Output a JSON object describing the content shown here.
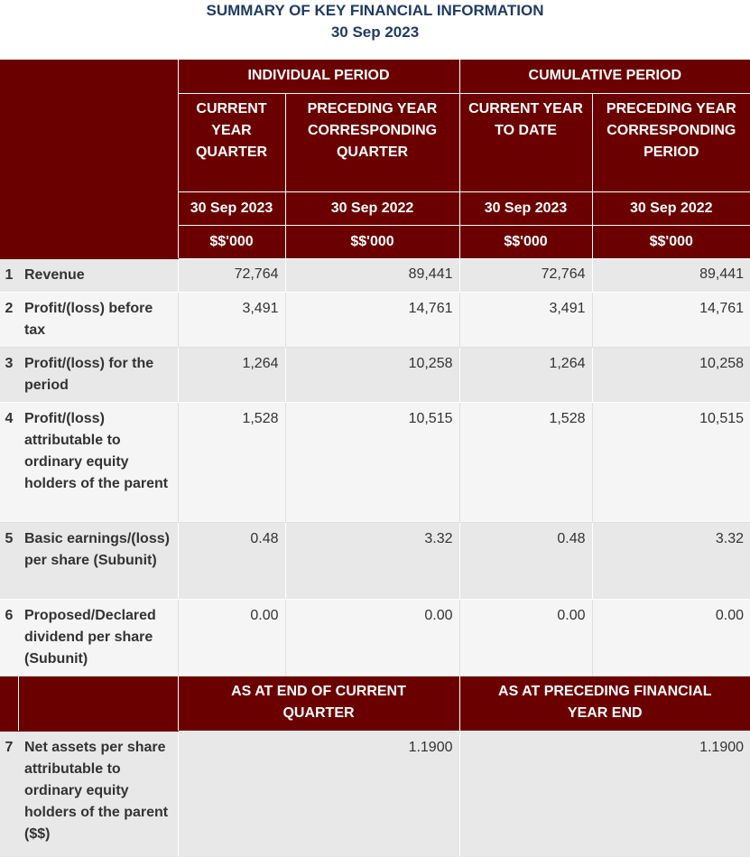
{
  "title": "SUMMARY OF KEY FINANCIAL INFORMATION",
  "subtitle": "30 Sep 2023",
  "headers": {
    "individual_period": "INDIVIDUAL PERIOD",
    "cumulative_period": "CUMULATIVE PERIOD",
    "col1": "CURRENT YEAR QUARTER",
    "col2": "PRECEDING YEAR CORRESPONDING QUARTER",
    "col3": "CURRENT YEAR TO DATE",
    "col4": "PRECEDING YEAR CORRESPONDING PERIOD",
    "date1": "30 Sep 2023",
    "date2": "30 Sep 2022",
    "date3": "30 Sep 2023",
    "date4": "30 Sep 2022",
    "unit1": "$$'000",
    "unit2": "$$'000",
    "unit3": "$$'000",
    "unit4": "$$'000",
    "as_at_current": "AS AT END OF CURRENT QUARTER",
    "as_at_preceding": "AS AT PRECEDING FINANCIAL YEAR END"
  },
  "rows": [
    {
      "num": "1",
      "label": "Revenue",
      "v1": "72,764",
      "v2": "89,441",
      "v3": "72,764",
      "v4": "89,441"
    },
    {
      "num": "2",
      "label": "Profit/(loss) before tax",
      "v1": "3,491",
      "v2": "14,761",
      "v3": "3,491",
      "v4": "14,761"
    },
    {
      "num": "3",
      "label": "Profit/(loss) for the period",
      "v1": "1,264",
      "v2": "10,258",
      "v3": "1,264",
      "v4": "10,258"
    },
    {
      "num": "4",
      "label": "Profit/(loss) attributable to ordinary equity holders of the parent",
      "v1": "1,528",
      "v2": "10,515",
      "v3": "1,528",
      "v4": "10,515"
    },
    {
      "num": "5",
      "label": "Basic earnings/(loss) per share (Subunit)",
      "v1": "0.48",
      "v2": "3.32",
      "v3": "0.48",
      "v4": "3.32"
    },
    {
      "num": "6",
      "label": "Proposed/Declared dividend per share (Subunit)",
      "v1": "0.00",
      "v2": "0.00",
      "v3": "0.00",
      "v4": "0.00"
    }
  ],
  "net_assets": {
    "num": "7",
    "label": "Net assets per share attributable to ordinary equity holders of the parent ($$)",
    "current": "1.1900",
    "preceding": "1.1900"
  },
  "colors": {
    "header_bg": "#6b0000",
    "title": "#1f3c63",
    "row_alt_a": "#e8e8e8",
    "row_alt_b": "#f5f5f5"
  }
}
